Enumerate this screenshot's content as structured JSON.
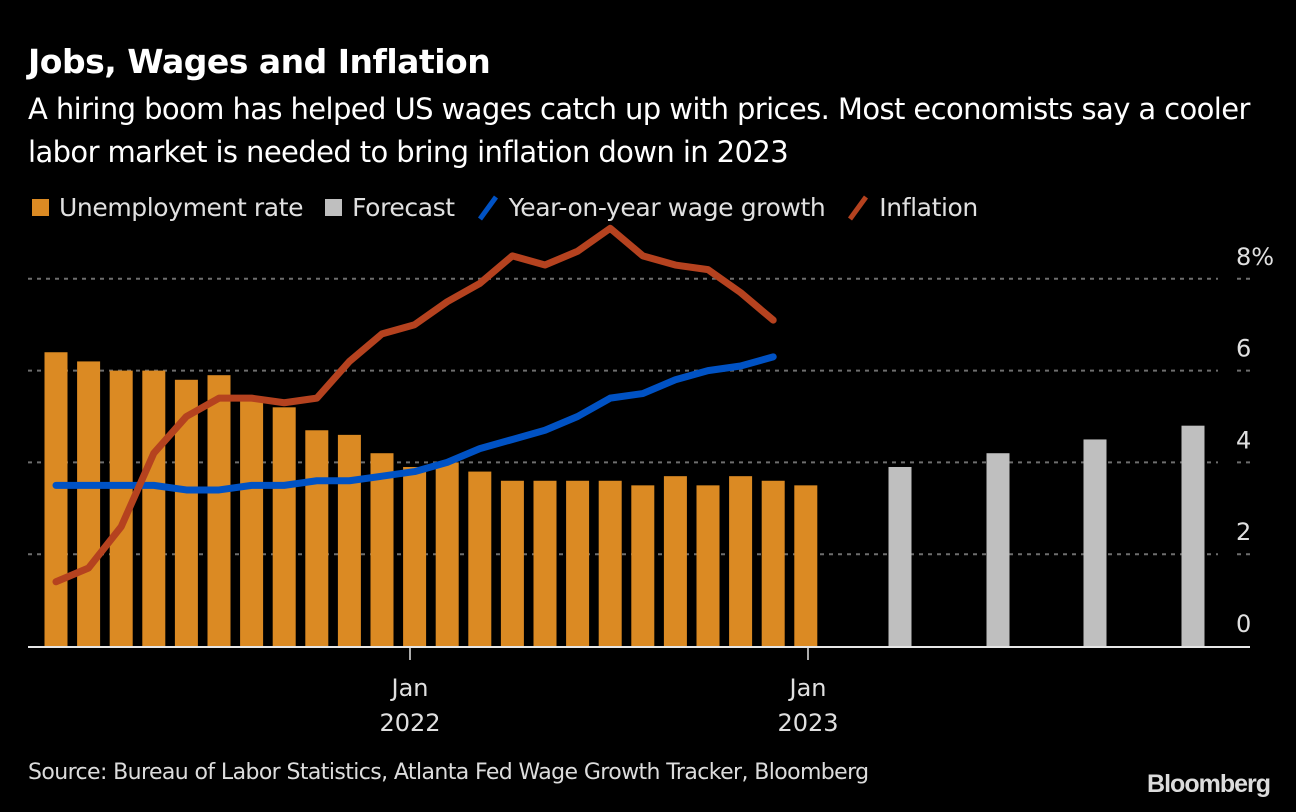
{
  "header": {
    "title": "Jobs, Wages and Inflation",
    "subtitle": "A hiring boom has helped US wages catch up with prices. Most economists say a cooler labor market is needed to bring inflation down in 2023"
  },
  "legend": [
    {
      "label": "Unemployment rate",
      "kind": "box",
      "color": "#DB8A23"
    },
    {
      "label": "Forecast",
      "kind": "box",
      "color": "#BFBFBF"
    },
    {
      "label": "Year-on-year wage growth",
      "kind": "line",
      "color": "#0052C4"
    },
    {
      "label": "Inflation",
      "kind": "line",
      "color": "#B5421F"
    }
  ],
  "footer": {
    "source": "Source: Bureau of Labor Statistics, Atlanta Fed Wage Growth Tracker, Bloomberg",
    "logo": "Bloomberg"
  },
  "chart_data": {
    "type": "bar",
    "title": "Jobs, Wages and Inflation",
    "xlabel": "",
    "ylabel": "",
    "ylim": [
      0,
      8
    ],
    "y_ticks": [
      0,
      2,
      4,
      6,
      8
    ],
    "y_tick_labels": [
      "0",
      "2",
      "4",
      "6",
      "8%"
    ],
    "y_axis_position": "right",
    "grid": true,
    "x_tick_labels": [
      {
        "month": "Jan",
        "year": "2022",
        "index": 11
      },
      {
        "month": "Jan",
        "year": "2023",
        "index": 23
      }
    ],
    "series": [
      {
        "name": "Unemployment rate",
        "type": "bar",
        "color": "#DB8A23",
        "values": [
          6.4,
          6.2,
          6.0,
          6.0,
          5.8,
          5.9,
          5.4,
          5.2,
          4.7,
          4.6,
          4.2,
          3.9,
          4.0,
          3.8,
          3.6,
          3.6,
          3.6,
          3.6,
          3.5,
          3.7,
          3.5,
          3.7,
          3.6,
          3.5
        ]
      },
      {
        "name": "Forecast",
        "type": "bar",
        "color": "#BFBFBF",
        "values": [
          3.9,
          4.2,
          4.5,
          4.8
        ]
      },
      {
        "name": "Year-on-year wage growth",
        "type": "line",
        "color": "#0052C4",
        "values": [
          3.5,
          3.5,
          3.5,
          3.5,
          3.4,
          3.4,
          3.5,
          3.5,
          3.6,
          3.6,
          3.7,
          3.8,
          4.0,
          4.3,
          4.5,
          4.7,
          5.0,
          5.4,
          5.5,
          5.8,
          6.0,
          6.1,
          6.3
        ]
      },
      {
        "name": "Inflation",
        "type": "line",
        "color": "#B5421F",
        "values": [
          1.4,
          1.7,
          2.6,
          4.2,
          5.0,
          5.4,
          5.4,
          5.3,
          5.4,
          6.2,
          6.8,
          7.0,
          7.5,
          7.9,
          8.5,
          8.3,
          8.6,
          9.1,
          8.5,
          8.3,
          8.2,
          7.7,
          7.1
        ]
      }
    ]
  }
}
